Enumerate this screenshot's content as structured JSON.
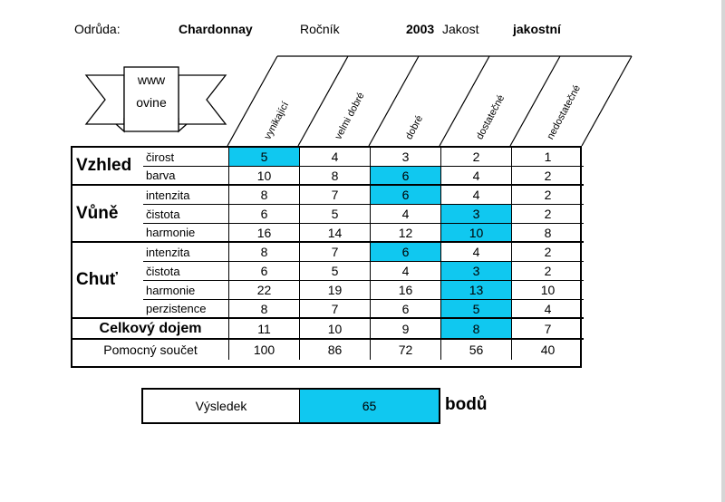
{
  "header": {
    "variety_label": "Odrůda:",
    "variety": "Chardonnay",
    "year_label": "Ročník",
    "year": "2003",
    "quality_label": "Jakost",
    "quality": "jakostní"
  },
  "logo": {
    "line1": "www",
    "line2": "ovine"
  },
  "columns": [
    "vynikající",
    "velmi dobré",
    "dobré",
    "dostatečné",
    "nedostatečné"
  ],
  "highlight_color": "#10c8f0",
  "groups": [
    {
      "name": "Vzhled",
      "rows": [
        {
          "label": "čirost",
          "values": [
            "5",
            "4",
            "3",
            "2",
            "1"
          ],
          "selected": 0
        },
        {
          "label": "barva",
          "values": [
            "10",
            "8",
            "6",
            "4",
            "2"
          ],
          "selected": 2
        }
      ]
    },
    {
      "name": "Vůně",
      "rows": [
        {
          "label": "intenzita",
          "values": [
            "8",
            "7",
            "6",
            "4",
            "2"
          ],
          "selected": 2
        },
        {
          "label": "čistota",
          "values": [
            "6",
            "5",
            "4",
            "3",
            "2"
          ],
          "selected": 3
        },
        {
          "label": "harmonie",
          "values": [
            "16",
            "14",
            "12",
            "10",
            "8"
          ],
          "selected": 3
        }
      ]
    },
    {
      "name": "Chuť",
      "rows": [
        {
          "label": "intenzita",
          "values": [
            "8",
            "7",
            "6",
            "4",
            "2"
          ],
          "selected": 2
        },
        {
          "label": "čistota",
          "values": [
            "6",
            "5",
            "4",
            "3",
            "2"
          ],
          "selected": 3
        },
        {
          "label": "harmonie",
          "values": [
            "22",
            "19",
            "16",
            "13",
            "10"
          ],
          "selected": 3
        },
        {
          "label": "perzistence",
          "values": [
            "8",
            "7",
            "6",
            "5",
            "4"
          ],
          "selected": 3
        }
      ]
    }
  ],
  "overall": {
    "label": "Celkový dojem",
    "values": [
      "11",
      "10",
      "9",
      "8",
      "7"
    ],
    "selected": 3
  },
  "subtotal": {
    "label": "Pomocný součet",
    "values": [
      "100",
      "86",
      "72",
      "56",
      "40"
    ]
  },
  "result": {
    "label": "Výsledek",
    "value": "65",
    "unit": "bodů"
  }
}
